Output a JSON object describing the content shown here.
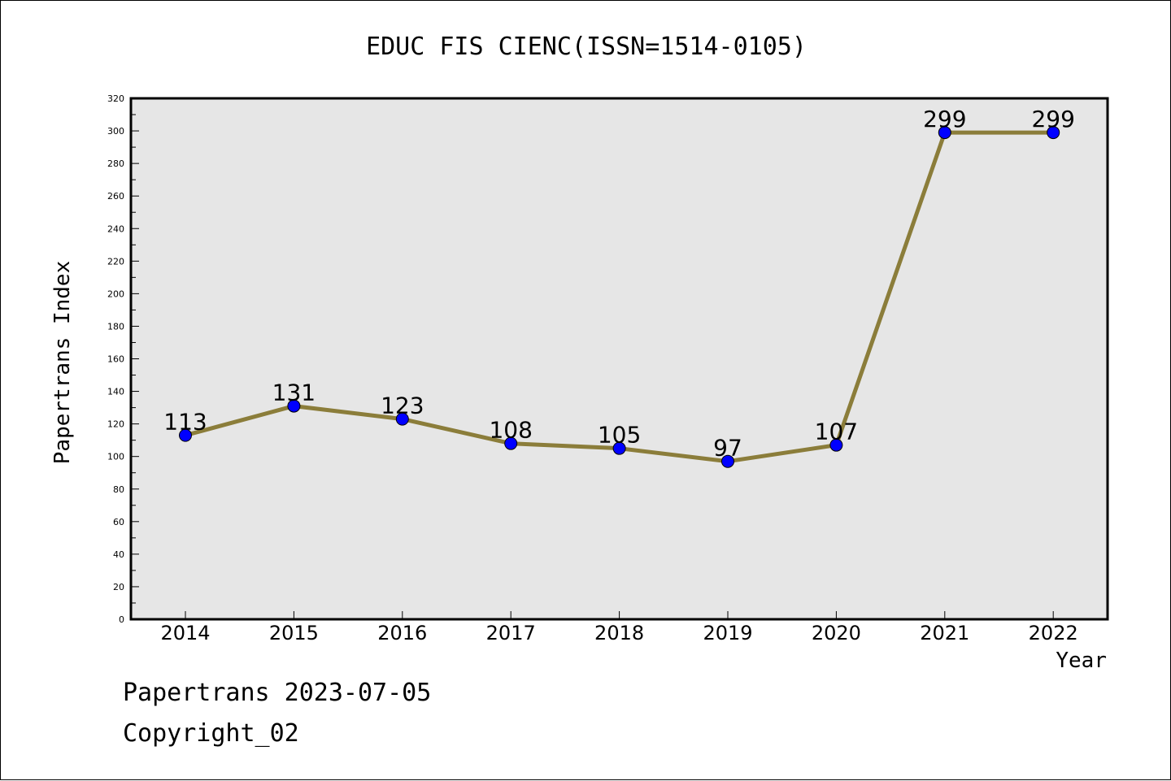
{
  "chart_data": {
    "type": "line",
    "title": "EDUC FIS CIENC(ISSN=1514-0105)",
    "xlabel": "Year",
    "ylabel": "Papertrans Index",
    "categories": [
      "2014",
      "2015",
      "2016",
      "2017",
      "2018",
      "2019",
      "2020",
      "2021",
      "2022"
    ],
    "values": [
      113,
      131,
      123,
      108,
      105,
      97,
      107,
      299,
      299
    ],
    "data_labels": [
      "113",
      "131",
      "123",
      "108",
      "105",
      "97",
      "107",
      "299",
      "299"
    ],
    "ylim": [
      0,
      320
    ],
    "y_ticks": [
      "0",
      "20",
      "40",
      "60",
      "80",
      "100",
      "120",
      "140",
      "160",
      "180",
      "200",
      "220",
      "240",
      "260",
      "280",
      "300",
      "320"
    ],
    "grid": false,
    "colors": {
      "line": "#8b7d3a",
      "marker": "#0000ff",
      "plot_background": "#e6e6e6"
    }
  },
  "footer": {
    "line1": "Papertrans 2023-07-05",
    "line2": "Copyright_02"
  }
}
